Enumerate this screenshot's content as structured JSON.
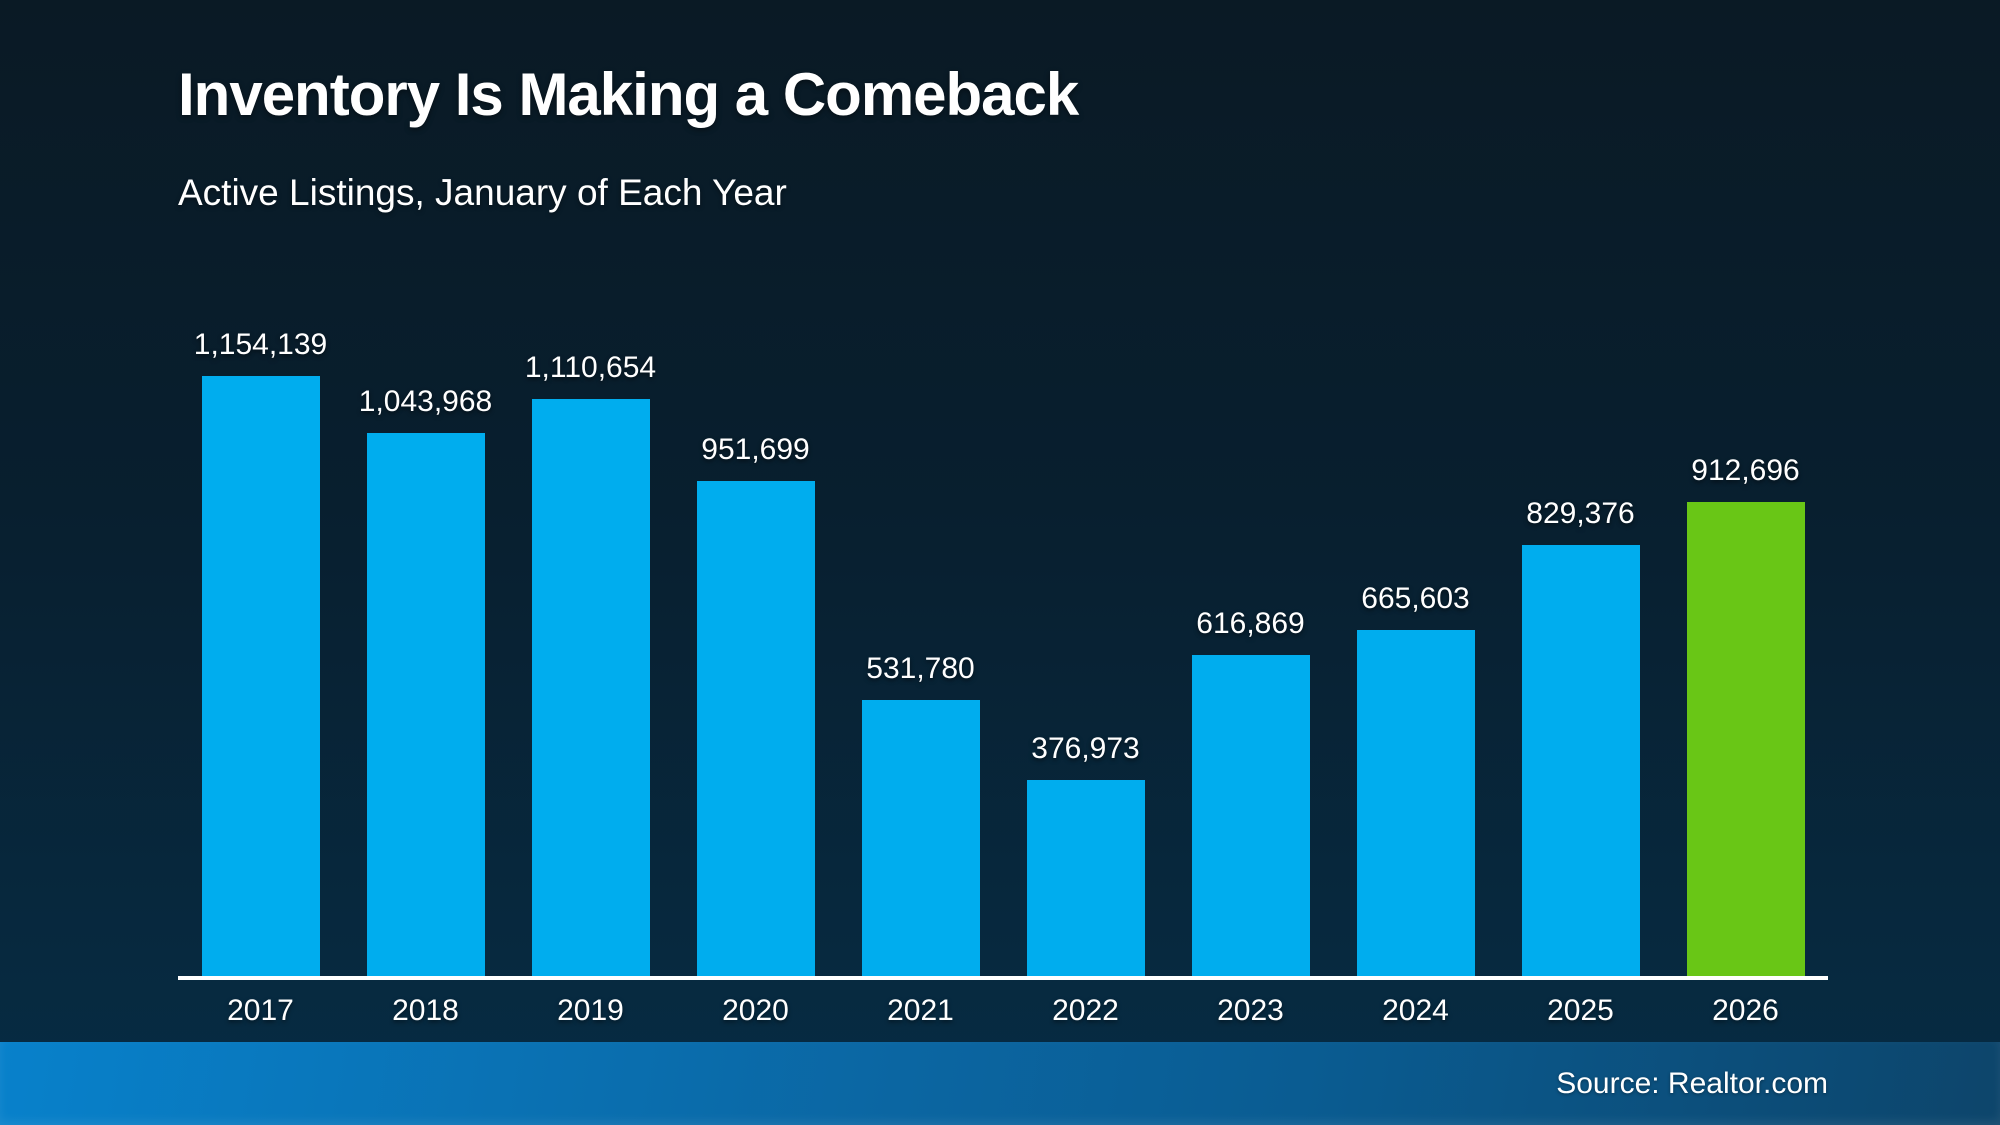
{
  "title": "Inventory Is Making a Comeback",
  "subtitle": "Active Listings, January of Each Year",
  "source": "Source: Realtor.com",
  "colors": {
    "bar_default": "#00ADEE",
    "bar_highlight": "#69C616",
    "axis": "#FFFFFF",
    "background_top": "#0A1A25",
    "background_bottom": "#062C44",
    "footer_left": "#0881CB",
    "footer_right": "#0D456B",
    "text": "#FFFFFF"
  },
  "chart_data": {
    "type": "bar",
    "title": "Inventory Is Making a Comeback",
    "subtitle": "Active Listings, January of Each Year",
    "xlabel": "",
    "ylabel": "",
    "categories": [
      "2017",
      "2018",
      "2019",
      "2020",
      "2021",
      "2022",
      "2023",
      "2024",
      "2025",
      "2026"
    ],
    "values": [
      1154139,
      1043968,
      1110654,
      951699,
      531780,
      376973,
      616869,
      665603,
      829376,
      912696
    ],
    "value_labels": [
      "1,154,139",
      "1,043,968",
      "1,110,654",
      "951,699",
      "531,780",
      "376,973",
      "616,869",
      "665,603",
      "829,376",
      "912,696"
    ],
    "highlight_index": 9,
    "ylim": [
      0,
      1200000
    ],
    "grid": false,
    "legend": false,
    "data_labels": "above-bars",
    "source": "Source: Realtor.com"
  }
}
